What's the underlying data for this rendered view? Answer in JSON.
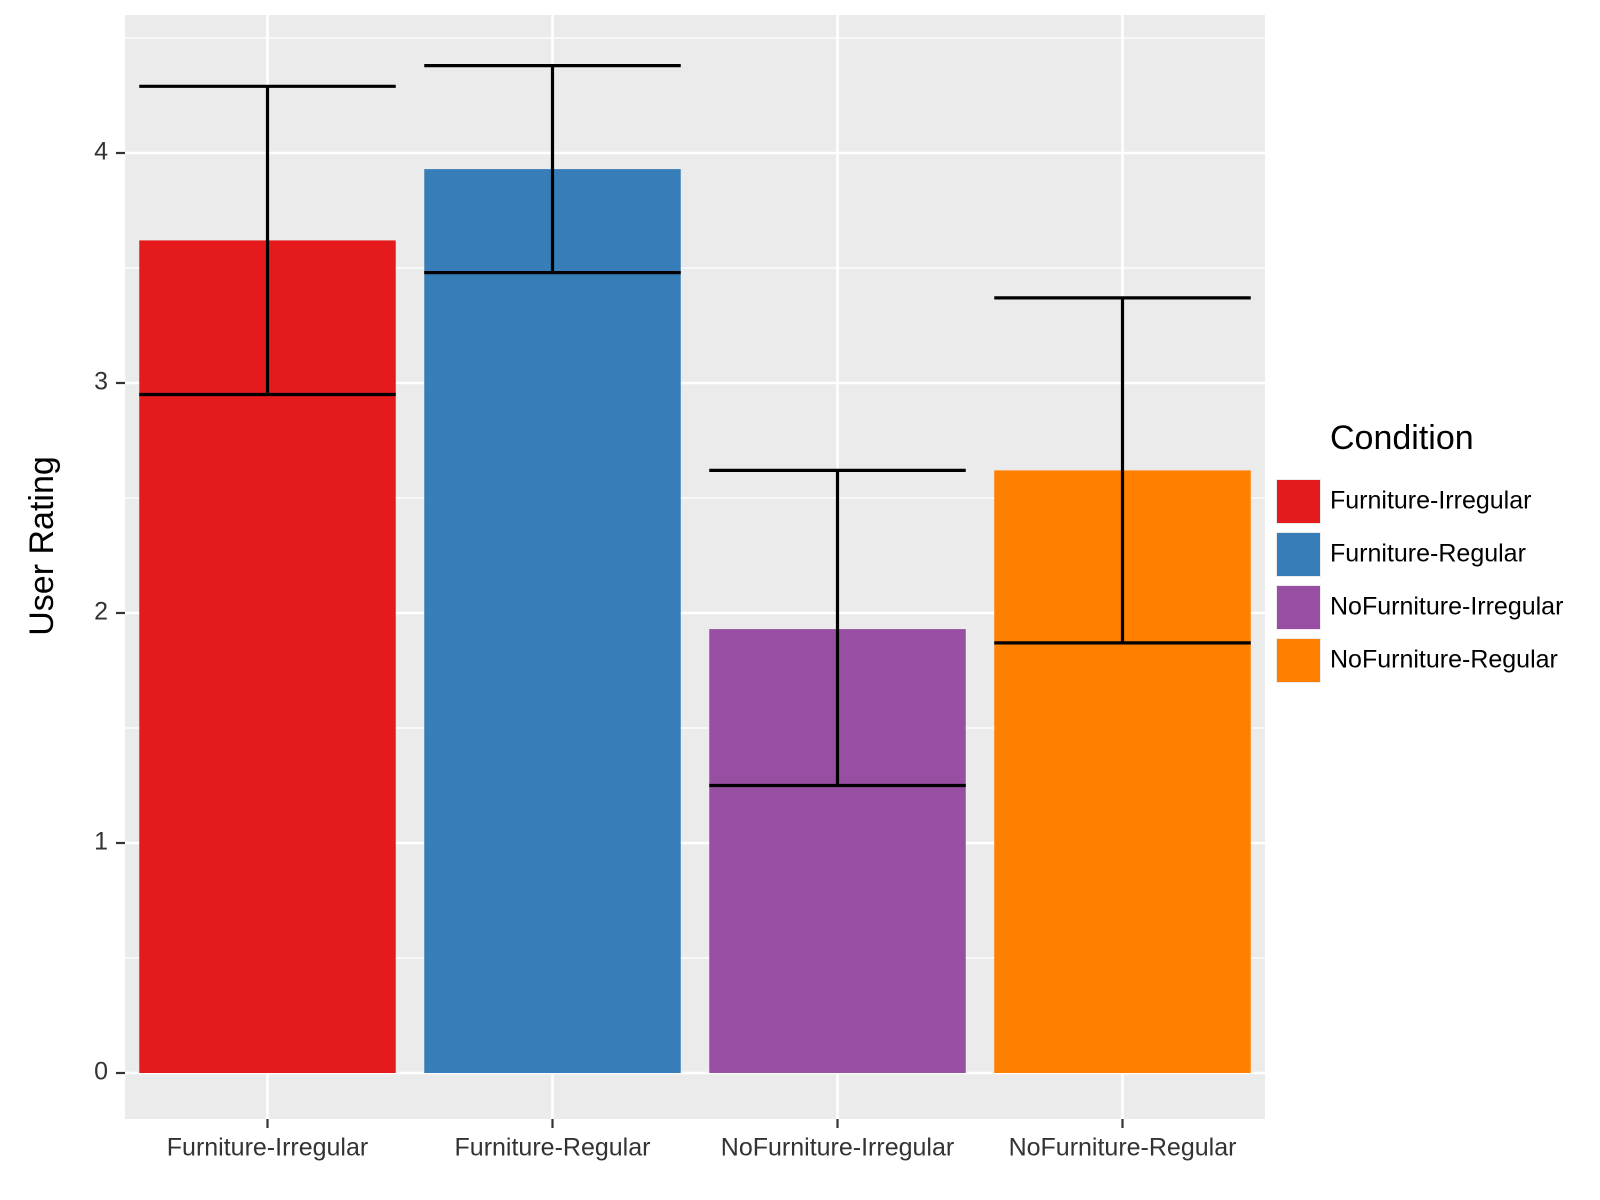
{
  "chart_data": {
    "type": "bar",
    "categories": [
      "Furniture-Irregular",
      "Furniture-Regular",
      "NoFurniture-Irregular",
      "NoFurniture-Regular"
    ],
    "values": [
      3.62,
      3.93,
      1.93,
      2.62
    ],
    "error_low": [
      2.95,
      3.48,
      1.25,
      1.87
    ],
    "error_high": [
      4.29,
      4.38,
      2.62,
      3.37
    ],
    "colors": [
      "#E41A1C",
      "#377EB8",
      "#984EA3",
      "#FF7F00"
    ],
    "ylabel": "User Rating",
    "xlabel": "",
    "ylim": [
      -0.2,
      4.6
    ],
    "yticks": [
      0,
      1,
      2,
      3,
      4
    ],
    "ytick_labels": [
      "0",
      "1",
      "2",
      "3",
      "4"
    ],
    "grid": true,
    "background": "#EBEBEB",
    "legend": {
      "title": "Condition",
      "placement": "right",
      "entries": [
        "Furniture-Irregular",
        "Furniture-Regular",
        "NoFurniture-Irregular",
        "NoFurniture-Regular"
      ]
    }
  }
}
